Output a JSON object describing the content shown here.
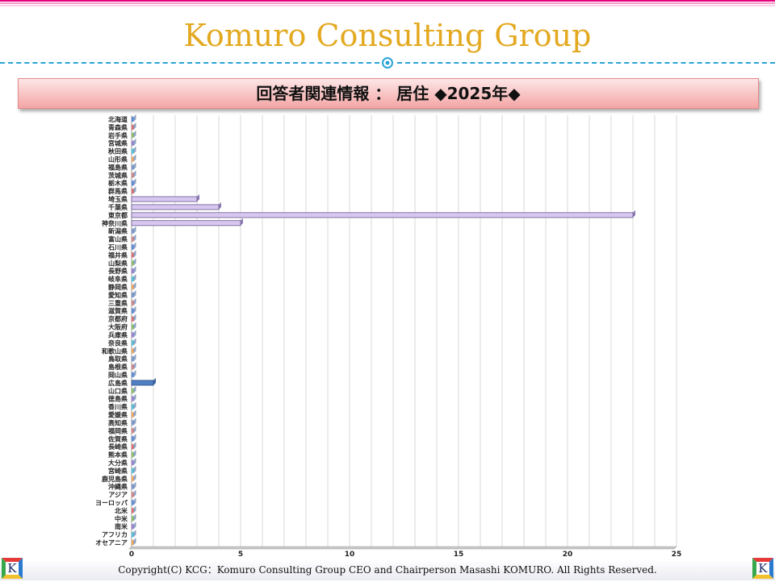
{
  "header": {
    "brand": "Komuro Consulting Group"
  },
  "banner": {
    "title": "回答者関連情報 ： 居住 ◆2025年◆"
  },
  "footer": {
    "copyright": "Copyright(C) KCG：Komuro Consulting Group CEO and Chairperson Masashi KOMURO. All Rights Reserved.",
    "logo_left": "K",
    "logo_right": "K"
  },
  "colors": {
    "brand": "#e3a920",
    "dash": "#2aa3d6",
    "bar_highlight": "#d7c6ee",
    "bar_blue": "#4f7fc2"
  },
  "chart_data": {
    "type": "bar",
    "orientation": "horizontal",
    "categories": [
      "北海道",
      "青森県",
      "岩手県",
      "宮城県",
      "秋田県",
      "山形県",
      "福島県",
      "茨城県",
      "栃木県",
      "群馬県",
      "埼玉県",
      "千葉県",
      "東京都",
      "神奈川県",
      "新潟県",
      "富山県",
      "石川県",
      "福井県",
      "山梨県",
      "長野県",
      "岐阜県",
      "静岡県",
      "愛知県",
      "三重県",
      "滋賀県",
      "京都府",
      "大阪府",
      "兵庫県",
      "奈良県",
      "和歌山県",
      "鳥取県",
      "島根県",
      "岡山県",
      "広島県",
      "山口県",
      "徳島県",
      "香川県",
      "愛媛県",
      "高知県",
      "福岡県",
      "佐賀県",
      "長崎県",
      "熊本県",
      "大分県",
      "宮崎県",
      "鹿児島県",
      "沖縄県",
      "アジア",
      "ヨーロッパ",
      "北米",
      "中米",
      "南米",
      "アフリカ",
      "オセアニア"
    ],
    "values": [
      0,
      0,
      0,
      0,
      0,
      0,
      0,
      0,
      0,
      0,
      3,
      4,
      23,
      5,
      0,
      0,
      0,
      0,
      0,
      0,
      0,
      0,
      0,
      0,
      0,
      0,
      0,
      0,
      0,
      0,
      0,
      0,
      0,
      1,
      0,
      0,
      0,
      0,
      0,
      0,
      0,
      0,
      0,
      0,
      0,
      0,
      0,
      0,
      0,
      0,
      0,
      0,
      0,
      0
    ],
    "xlim": [
      0,
      25
    ],
    "xticks": [
      0,
      5,
      10,
      15,
      20,
      25
    ],
    "grid": true,
    "legend": "none"
  }
}
